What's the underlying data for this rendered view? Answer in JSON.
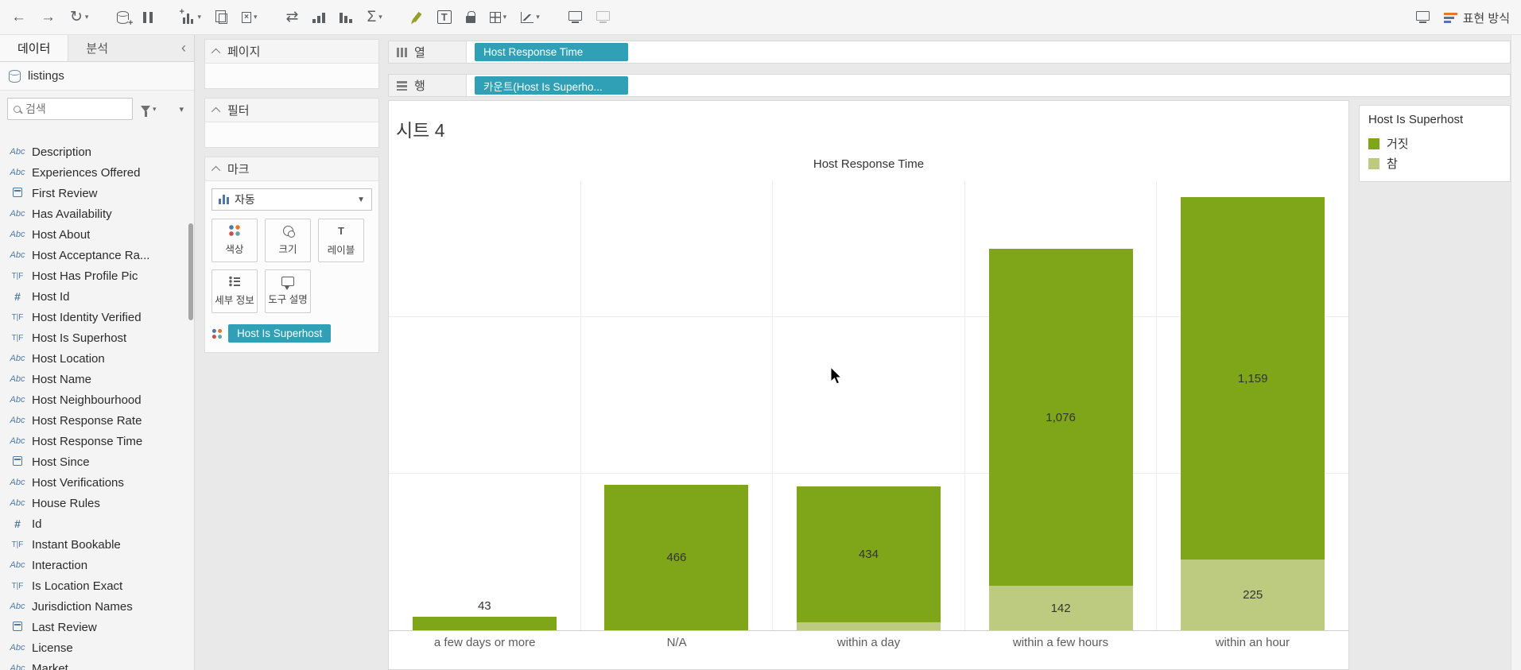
{
  "toolbar": {
    "show_me_label": "표현 방식",
    "groups": [
      [
        {
          "name": "undo",
          "glyph": "←"
        },
        {
          "name": "redo",
          "glyph": "→"
        },
        {
          "name": "replay",
          "glyph": "↻",
          "caret": true
        }
      ],
      [
        {
          "name": "new-data-source",
          "shape": "datasource"
        },
        {
          "name": "pause-auto-updates",
          "shape": "pause"
        }
      ],
      [
        {
          "name": "new-worksheet",
          "shape": "newsheet",
          "caret": true
        },
        {
          "name": "duplicate-sheet",
          "shape": "duplicate"
        },
        {
          "name": "clear-sheet",
          "shape": "clear",
          "caret": true
        }
      ],
      [
        {
          "name": "swap-rows-and-columns",
          "glyph": "⇄"
        },
        {
          "name": "sort-ascending",
          "shape": "sortasc"
        },
        {
          "name": "sort-descending",
          "shape": "sortdesc"
        },
        {
          "name": "totals",
          "glyph": "Σ",
          "caret": true
        }
      ],
      [
        {
          "name": "highlight",
          "shape": "pen olive",
          "active": true
        },
        {
          "name": "show-mark-labels",
          "glyph": "T",
          "active": true
        },
        {
          "name": "fix-axes",
          "shape": "lock"
        },
        {
          "name": "borders",
          "shape": "borders",
          "caret": true
        },
        {
          "name": "chart-type",
          "shape": "charttype",
          "caret": true
        }
      ],
      [
        {
          "name": "presentation-mode",
          "shape": "monitor"
        },
        {
          "name": "device-preview",
          "shape": "monitor",
          "disabled": true
        }
      ]
    ]
  },
  "sidebar": {
    "tabs": [
      {
        "label": "데이터"
      },
      {
        "label": "분석"
      }
    ],
    "collapse_glyph": "‹",
    "datasource_label": "listings",
    "search_placeholder": "검색",
    "fields": [
      {
        "type": "Abc",
        "label": "Description"
      },
      {
        "type": "Abc",
        "label": "Experiences Offered"
      },
      {
        "type": "date",
        "label": "First Review"
      },
      {
        "type": "Abc",
        "label": "Has Availability"
      },
      {
        "type": "Abc",
        "label": "Host About"
      },
      {
        "type": "Abc",
        "label": "Host Acceptance Ra..."
      },
      {
        "type": "TF",
        "label": "Host Has Profile Pic"
      },
      {
        "type": "#",
        "label": "Host Id"
      },
      {
        "type": "TF",
        "label": "Host Identity Verified"
      },
      {
        "type": "TF",
        "label": "Host Is Superhost"
      },
      {
        "type": "Abc",
        "label": "Host Location"
      },
      {
        "type": "Abc",
        "label": "Host Name"
      },
      {
        "type": "Abc",
        "label": "Host Neighbourhood"
      },
      {
        "type": "Abc",
        "label": "Host Response Rate"
      },
      {
        "type": "Abc",
        "label": "Host Response Time"
      },
      {
        "type": "date",
        "label": "Host Since"
      },
      {
        "type": "Abc",
        "label": "Host Verifications"
      },
      {
        "type": "Abc",
        "label": "House Rules"
      },
      {
        "type": "#",
        "label": "Id"
      },
      {
        "type": "TF",
        "label": "Instant Bookable"
      },
      {
        "type": "Abc",
        "label": "Interaction"
      },
      {
        "type": "TF",
        "label": "Is Location Exact"
      },
      {
        "type": "Abc",
        "label": "Jurisdiction Names"
      },
      {
        "type": "date",
        "label": "Last Review"
      },
      {
        "type": "Abc",
        "label": "License"
      },
      {
        "type": "Abc",
        "label": "Market"
      }
    ]
  },
  "panels": {
    "pages_title": "페이지",
    "filters_title": "필터",
    "marks": {
      "title": "마크",
      "dropdown_label": "자동",
      "buttons": [
        {
          "name": "color",
          "label": "색상"
        },
        {
          "name": "size",
          "label": "크기"
        },
        {
          "name": "label",
          "label": "레이블"
        },
        {
          "name": "detail",
          "label": "세부 정보"
        },
        {
          "name": "tooltip",
          "label": "도구 설명"
        }
      ],
      "pill_label": "Host Is Superhost"
    }
  },
  "shelves": {
    "columns_label": "열",
    "rows_label": "행",
    "columns_pills": [
      "Host Response Time"
    ],
    "rows_pills": [
      "카운트(Host Is Superho..."
    ]
  },
  "sheet": {
    "title": "시트 4"
  },
  "chart_data": {
    "type": "bar",
    "stacked": true,
    "title": "Host Response Time",
    "categories": [
      "a few days or more",
      "N/A",
      "within a day",
      "within a few hours",
      "within an hour"
    ],
    "series": [
      {
        "name": "거짓",
        "color": "#7fa519",
        "values": [
          43,
          466,
          434,
          1076,
          1159
        ],
        "labels": [
          "43",
          "466",
          "434",
          "1,076",
          "1,159"
        ]
      },
      {
        "name": "참",
        "color": "#bccb7f",
        "values": [
          0,
          0,
          25,
          142,
          225
        ],
        "labels": [
          "",
          "",
          "",
          "142",
          "225"
        ]
      }
    ],
    "ylim": [
      0,
      1440
    ],
    "gridline_values": [
      500,
      1000
    ],
    "legend_position": "top-right",
    "x_axis_labels_visible": true,
    "y_axis_labels_visible": false
  },
  "legend": {
    "title": "Host Is Superhost",
    "items": [
      {
        "label": "거짓",
        "color": "#7fa519"
      },
      {
        "label": "참",
        "color": "#bccb7f"
      }
    ]
  },
  "colors": {
    "pill_teal": "#2fa0b5",
    "bar_false": "#7fa519",
    "bar_true": "#bccb7f",
    "field_icon_blue": "#4e79a7"
  }
}
